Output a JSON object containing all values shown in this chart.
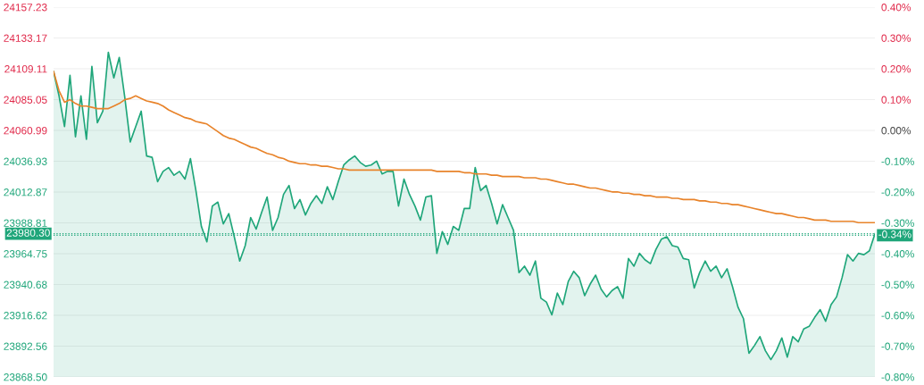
{
  "chart_data": {
    "type": "area",
    "categories": [
      null,
      null,
      null,
      null,
      null,
      null,
      null,
      null,
      null,
      null,
      null,
      null,
      null,
      null,
      null,
      null,
      null,
      null,
      null,
      null,
      null,
      null,
      null,
      null,
      null,
      null,
      null,
      null,
      null,
      null,
      null,
      null,
      null,
      null,
      null,
      null,
      null,
      null,
      null,
      null,
      null,
      null,
      null,
      null,
      null,
      null,
      null,
      null,
      null,
      null,
      null,
      null,
      null,
      null,
      null,
      null,
      null,
      null,
      null,
      null,
      null,
      null,
      null,
      null,
      null,
      null,
      null,
      null,
      null,
      null,
      null,
      null,
      null,
      null,
      null,
      null,
      null,
      null,
      null,
      null,
      null,
      null,
      null,
      null,
      null,
      null,
      null,
      null,
      null,
      null,
      null,
      null,
      null,
      null,
      null,
      null,
      null,
      null,
      null,
      null,
      null,
      null,
      null,
      null,
      null,
      null,
      null,
      null,
      null,
      null,
      null,
      null,
      null,
      null,
      null,
      null,
      null,
      null,
      null,
      null,
      null,
      null,
      null,
      null,
      null,
      null,
      null,
      null,
      null,
      null,
      null,
      null,
      null,
      null,
      null,
      null,
      null,
      null,
      null,
      null,
      null,
      null,
      null,
      null,
      null,
      null,
      null,
      null,
      null,
      null,
      null
    ],
    "series": [
      {
        "color": "#1fa67a",
        "values": [
          24107,
          24088,
          24064,
          24104,
          24056,
          24088,
          24054,
          24111,
          24067,
          24076,
          24122,
          24102,
          24118,
          24087,
          24052,
          24064,
          24076,
          24041,
          24040,
          24021,
          24029,
          24032,
          24026,
          24029,
          24023,
          24039,
          24014,
          23986,
          23974,
          24002,
          24005,
          23988,
          23996,
          23978,
          23959,
          23971,
          23993,
          23984,
          23997,
          24009,
          23983,
          23993,
          24011,
          24018,
          24000,
          24007,
          23995,
          24004,
          24010,
          24004,
          24017,
          24007,
          24021,
          24034,
          24038,
          24041,
          24036,
          24033,
          24034,
          24037,
          24027,
          24029,
          24029,
          24002,
          24023,
          24011,
          24002,
          23991,
          24009,
          24010,
          23965,
          23982,
          23972,
          23986,
          23983,
          24000,
          24000,
          24032,
          24014,
          24018,
          24004,
          23988,
          24003,
          23993,
          23983,
          23950,
          23955,
          23948,
          23959,
          23930,
          23927,
          23917,
          23934,
          23925,
          23943,
          23951,
          23946,
          23932,
          23941,
          23948,
          23937,
          23931,
          23936,
          23939,
          23930,
          23961,
          23955,
          23965,
          23960,
          23957,
          23968,
          23976,
          23978,
          23971,
          23970,
          23961,
          23960,
          23938,
          23950,
          23959,
          23951,
          23955,
          23946,
          23953,
          23939,
          23923,
          23914,
          23887,
          23893,
          23900,
          23889,
          23882,
          23889,
          23899,
          23884,
          23900,
          23896,
          23906,
          23908,
          23915,
          23921,
          23912,
          23925,
          23931,
          23946,
          23964,
          23959,
          23965,
          23964,
          23967,
          23980.3
        ]
      },
      {
        "type": "line",
        "color": "#e8832a",
        "values": [
          24107,
          24092,
          24083,
          24085,
          24082,
          24080,
          24080,
          24079,
          24078,
          24078,
          24078,
          24080,
          24082,
          24085,
          24086,
          24088,
          24086,
          24084,
          24083,
          24082,
          24080,
          24077,
          24075,
          24073,
          24071,
          24070,
          24068,
          24067,
          24066,
          24063,
          24060,
          24057,
          24055,
          24054,
          24052,
          24050,
          24048,
          24047,
          24045,
          24043,
          24042,
          24040,
          24039,
          24037,
          24036,
          24035,
          24035,
          24034,
          24034,
          24033,
          24033,
          24032,
          24031,
          24031,
          24030,
          24030,
          24030,
          24030,
          24030,
          24030,
          24030,
          24030,
          24030,
          24030,
          24030,
          24030,
          24030,
          24030,
          24030,
          24030,
          24029,
          24029,
          24029,
          24029,
          24029,
          24028,
          24028,
          24027,
          24027,
          24027,
          24026,
          24026,
          24025,
          24025,
          24025,
          24025,
          24024,
          24024,
          24024,
          24023,
          24023,
          24022,
          24021,
          24020,
          24019,
          24019,
          24018,
          24017,
          24016,
          24016,
          24015,
          24014,
          24013,
          24013,
          24012,
          24012,
          24011,
          24011,
          24010,
          24010,
          24009,
          24009,
          24009,
          24008,
          24008,
          24007,
          24007,
          24007,
          24006,
          24006,
          24005,
          24005,
          24004,
          24004,
          24003,
          24003,
          24002,
          24001,
          24000,
          23999,
          23998,
          23997,
          23996,
          23996,
          23995,
          23994,
          23993,
          23993,
          23992,
          23991,
          23991,
          23991,
          23990,
          23990,
          23990,
          23990,
          23990,
          23989,
          23989,
          23989,
          23989
        ]
      }
    ],
    "ylim": [
      23868.5,
      24157.23
    ],
    "yticks": [
      24157.23,
      24133.17,
      24109.11,
      24085.05,
      24060.99,
      24036.93,
      24012.87,
      23988.81,
      23964.75,
      23940.68,
      23916.62,
      23892.56,
      {
        "value": 23868.5,
        "label": "23868.50"
      }
    ],
    "y2lim": [
      -0.8,
      0.4
    ],
    "y2ticks": [
      {
        "value": 0.4,
        "label": "0.40%"
      },
      {
        "value": 0.3,
        "label": "0.30%"
      },
      {
        "value": 0.2,
        "label": "0.20%"
      },
      {
        "value": 0.1,
        "label": "0.10%"
      },
      {
        "value": 0.0,
        "label": "0.00%"
      },
      {
        "value": -0.1,
        "label": "-0.10%"
      },
      {
        "value": -0.2,
        "label": "-0.20%"
      },
      {
        "value": -0.3,
        "label": "-0.30%"
      },
      {
        "value": -0.4,
        "label": "-0.40%"
      },
      {
        "value": -0.5,
        "label": "-0.50%"
      },
      {
        "value": -0.6,
        "label": "-0.60%"
      },
      {
        "value": -0.7,
        "label": "-0.70%"
      },
      {
        "value": -0.8,
        "label": "-0.80%"
      }
    ],
    "ref_lines": [
      {
        "axis": "y",
        "value": 23980.3,
        "label": "23980.30",
        "color": "#1fa67a",
        "line_style": "dotted"
      },
      {
        "axis": "y2",
        "value": -0.34,
        "label": "-0.34%",
        "color": "#1fa67a",
        "line_style": "dotted"
      }
    ],
    "grid": "y",
    "legend": false,
    "marker": "none",
    "line_style": "solid"
  }
}
